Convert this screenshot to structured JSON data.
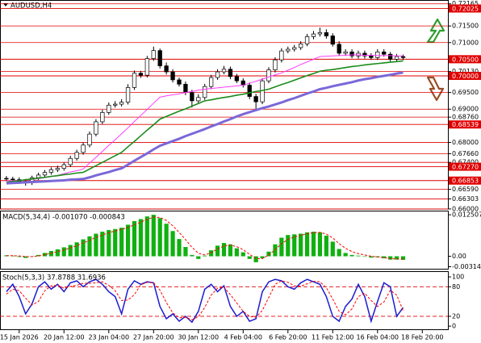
{
  "chart_data": [
    {
      "type": "candlestick",
      "title": "AUDUSD,H4",
      "x": [
        1,
        2,
        3,
        4,
        5,
        6,
        7,
        8,
        9,
        10,
        11,
        12,
        13,
        14,
        15,
        16,
        17,
        18,
        19,
        20,
        21,
        22,
        23,
        24,
        25,
        26,
        27,
        28,
        29,
        30,
        31,
        32,
        33,
        34,
        35,
        36,
        37,
        38,
        39,
        40,
        41,
        42,
        43,
        44,
        45,
        46,
        47,
        48,
        49,
        50,
        51,
        52,
        53,
        54,
        55,
        56,
        57,
        58,
        59,
        60,
        61,
        62,
        63
      ],
      "xlim": [
        0,
        70
      ],
      "xticks": [
        {
          "value": 3,
          "label": "15 Jan 2026"
        },
        {
          "value": 10,
          "label": "20 Jan 12:00"
        },
        {
          "value": 17,
          "label": "23 Jan 04:00"
        },
        {
          "value": 24,
          "label": "27 Jan 20:00"
        },
        {
          "value": 31,
          "label": "30 Jan 12:00"
        },
        {
          "value": 38,
          "label": "4 Feb 04:00"
        },
        {
          "value": 45,
          "label": "6 Feb 20:00"
        },
        {
          "value": 52,
          "label": "11 Feb 12:00"
        },
        {
          "value": 59,
          "label": "16 Feb 04:00"
        },
        {
          "value": 66,
          "label": "18 Feb 20:00"
        }
      ],
      "ylim": [
        0.65998,
        0.7228
      ],
      "yticks": [
        0.72165,
        {
          "value": 0.715,
          "label": "0.71500"
        },
        {
          "value": 0.71,
          "label": "0.71000"
        },
        {
          "value": 0.7013,
          "label": "0.70130"
        },
        {
          "value": 0.695,
          "label": "0.69500"
        },
        {
          "value": 0.69,
          "label": "0.69000"
        },
        {
          "value": 0.6876,
          "label": "0.68760"
        },
        {
          "value": 0.68,
          "label": "0.68000"
        },
        {
          "value": 0.6766,
          "label": "0.67660"
        },
        {
          "value": 0.674,
          "label": "0.67400"
        },
        {
          "value": 0.6659,
          "label": "0.66590"
        },
        0.66303,
        {
          "value": 0.66,
          "label": "0.66000"
        }
      ],
      "levels": [
        0.72025,
        {
          "value": 0.705,
          "label": "0.70500"
        },
        {
          "value": 0.7,
          "label": "0.70000"
        },
        0.68539,
        {
          "value": 0.6727,
          "label": "0.67270"
        },
        0.66853
      ],
      "level_color": "#e00000",
      "grid": true,
      "up_color": "#ffffff",
      "down_color": "#000000",
      "open": [
        0.6692,
        0.669,
        0.6688,
        0.6683,
        0.6679,
        0.6694,
        0.6702,
        0.671,
        0.6718,
        0.6722,
        0.6733,
        0.6752,
        0.677,
        0.6792,
        0.6825,
        0.6862,
        0.689,
        0.6912,
        0.6915,
        0.6921,
        0.6965,
        0.7008,
        0.7002,
        0.7052,
        0.7076,
        0.703,
        0.7012,
        0.6988,
        0.6975,
        0.695,
        0.6925,
        0.6935,
        0.6968,
        0.6995,
        0.7012,
        0.702,
        0.6998,
        0.6985,
        0.6972,
        0.6938,
        0.6922,
        0.6985,
        0.7018,
        0.7048,
        0.7075,
        0.708,
        0.7085,
        0.7096,
        0.7118,
        0.7126,
        0.713,
        0.712,
        0.7095,
        0.7068,
        0.7072,
        0.706,
        0.7068,
        0.706,
        0.7055,
        0.7072,
        0.7065,
        0.705,
        0.7058
      ],
      "high": [
        0.6699,
        0.6697,
        0.6695,
        0.669,
        0.67,
        0.6709,
        0.6717,
        0.6725,
        0.673,
        0.674,
        0.676,
        0.6778,
        0.68,
        0.6833,
        0.687,
        0.6898,
        0.692,
        0.6924,
        0.693,
        0.6975,
        0.7016,
        0.7015,
        0.706,
        0.7088,
        0.7082,
        0.704,
        0.702,
        0.6995,
        0.6983,
        0.6958,
        0.6945,
        0.6976,
        0.7003,
        0.702,
        0.703,
        0.7028,
        0.7006,
        0.6993,
        0.698,
        0.6946,
        0.6993,
        0.7026,
        0.7056,
        0.7083,
        0.7088,
        0.7093,
        0.7104,
        0.7126,
        0.7135,
        0.7145,
        0.714,
        0.7128,
        0.7104,
        0.708,
        0.708,
        0.7076,
        0.7076,
        0.7068,
        0.708,
        0.708,
        0.7072,
        0.7066,
        0.7064
      ],
      "low": [
        0.6684,
        0.6681,
        0.6676,
        0.667,
        0.6672,
        0.6687,
        0.6695,
        0.6703,
        0.6711,
        0.6715,
        0.6726,
        0.6745,
        0.6763,
        0.6785,
        0.6818,
        0.6855,
        0.6883,
        0.6905,
        0.6908,
        0.6914,
        0.6958,
        0.6994,
        0.6995,
        0.7045,
        0.7022,
        0.7004,
        0.698,
        0.6968,
        0.6942,
        0.6905,
        0.6918,
        0.6928,
        0.696,
        0.6988,
        0.7005,
        0.699,
        0.6978,
        0.6965,
        0.693,
        0.69,
        0.6915,
        0.6978,
        0.701,
        0.704,
        0.7068,
        0.7073,
        0.7078,
        0.7089,
        0.711,
        0.7118,
        0.7112,
        0.7088,
        0.706,
        0.706,
        0.7053,
        0.7052,
        0.7052,
        0.7048,
        0.7048,
        0.7058,
        0.7043,
        0.7044,
        0.7048
      ],
      "close": [
        0.669,
        0.6688,
        0.6683,
        0.6679,
        0.6694,
        0.6702,
        0.671,
        0.6718,
        0.6722,
        0.6733,
        0.6752,
        0.677,
        0.6792,
        0.6825,
        0.6862,
        0.689,
        0.6912,
        0.6915,
        0.6921,
        0.6965,
        0.7008,
        0.7002,
        0.7052,
        0.7076,
        0.703,
        0.7012,
        0.6988,
        0.6975,
        0.695,
        0.6925,
        0.6935,
        0.6968,
        0.6995,
        0.7012,
        0.702,
        0.6998,
        0.6985,
        0.6972,
        0.6938,
        0.6922,
        0.6985,
        0.7018,
        0.7048,
        0.7075,
        0.708,
        0.7085,
        0.7096,
        0.7118,
        0.7126,
        0.713,
        0.712,
        0.7095,
        0.7068,
        0.7072,
        0.706,
        0.7068,
        0.706,
        0.7055,
        0.7072,
        0.7065,
        0.705,
        0.7058,
        0.7055
      ],
      "overlays": [
        {
          "color": "#ff3cff",
          "width": 1,
          "values": [
            0.6684,
            0.6685,
            0.6686,
            0.6687,
            0.6689,
            0.6691,
            0.6694,
            0.6697,
            0.6701,
            0.6706,
            0.6711,
            0.6715,
            0.672,
            0.6738,
            0.6755,
            0.6773,
            0.6791,
            0.6808,
            0.6826,
            0.6844,
            0.6863,
            0.6881,
            0.6899,
            0.6918,
            0.6936,
            0.694,
            0.6943,
            0.6946,
            0.695,
            0.6953,
            0.6957,
            0.696,
            0.6962,
            0.6964,
            0.6966,
            0.6968,
            0.697,
            0.6972,
            0.6978,
            0.6984,
            0.699,
            0.6997,
            0.7003,
            0.7009,
            0.7017,
            0.7025,
            0.7034,
            0.7042,
            0.705,
            0.7058,
            0.7059,
            0.706,
            0.7061,
            0.7062,
            0.7063,
            0.7063,
            0.7062,
            0.7062,
            0.7061,
            0.7061,
            0.7061,
            0.706,
            0.706
          ]
        },
        {
          "color": "#1a8c1a",
          "width": 1.6,
          "values": [
            0.668,
            0.6683,
            0.6685,
            0.6688,
            0.669,
            0.6693,
            0.6695,
            0.6698,
            0.67,
            0.6703,
            0.6705,
            0.6708,
            0.671,
            0.672,
            0.673,
            0.674,
            0.675,
            0.676,
            0.677,
            0.6787,
            0.6803,
            0.682,
            0.6837,
            0.6853,
            0.687,
            0.6878,
            0.6886,
            0.6894,
            0.6901,
            0.6909,
            0.6917,
            0.6925,
            0.6928,
            0.6932,
            0.6935,
            0.6938,
            0.6942,
            0.6945,
            0.6949,
            0.6953,
            0.6956,
            0.696,
            0.6967,
            0.6974,
            0.698,
            0.6987,
            0.6994,
            0.7001,
            0.7007,
            0.7014,
            0.7017,
            0.7019,
            0.7022,
            0.7025,
            0.7028,
            0.703,
            0.7033,
            0.7035,
            0.7037,
            0.7039,
            0.7041,
            0.7043,
            0.7045
          ]
        },
        {
          "color": "#7b68d8",
          "width": 3,
          "values": [
            0.6677,
            0.6678,
            0.6679,
            0.668,
            0.6681,
            0.6682,
            0.6683,
            0.6684,
            0.6685,
            0.6686,
            0.6688,
            0.6689,
            0.669,
            0.6695,
            0.6701,
            0.6706,
            0.6711,
            0.6717,
            0.6722,
            0.6733,
            0.6745,
            0.6756,
            0.6767,
            0.6779,
            0.679,
            0.6797,
            0.6804,
            0.6811,
            0.6819,
            0.6826,
            0.6833,
            0.684,
            0.6848,
            0.6855,
            0.6863,
            0.687,
            0.6878,
            0.6885,
            0.6891,
            0.6897,
            0.6903,
            0.6908,
            0.6914,
            0.692,
            0.6927,
            0.6933,
            0.694,
            0.6947,
            0.6953,
            0.696,
            0.6964,
            0.6969,
            0.6973,
            0.6977,
            0.6981,
            0.6986,
            0.699,
            0.6993,
            0.6997,
            0.7,
            0.7003,
            0.7007,
            0.701
          ]
        }
      ]
    },
    {
      "type": "bar",
      "title": "MACD(5,34,4) -0.001070 -0.000843",
      "ylim": [
        -0.004,
        0.0135
      ],
      "yticks": [
        0.012507,
        {
          "value": 0,
          "label": "0.00"
        },
        -0.003141
      ],
      "series": [
        {
          "type": "bar",
          "color": "#10b010",
          "values": [
            0.0003,
            0.0002,
            -0.0002,
            -0.0005,
            -0.0001,
            0.0004,
            0.001,
            0.0016,
            0.0021,
            0.0027,
            0.0034,
            0.0042,
            0.0051,
            0.006,
            0.0068,
            0.0074,
            0.0079,
            0.0082,
            0.0086,
            0.0095,
            0.0106,
            0.0112,
            0.012,
            0.0125,
            0.0115,
            0.0098,
            0.0076,
            0.0052,
            0.0028,
            0.0004,
            -0.0008,
            0.0002,
            0.0018,
            0.0032,
            0.004,
            0.0036,
            0.0024,
            0.0012,
            -0.0008,
            -0.0018,
            -0.0006,
            0.0014,
            0.0036,
            0.0056,
            0.0064,
            0.0066,
            0.0068,
            0.0072,
            0.0074,
            0.0072,
            0.0062,
            0.0044,
            0.0022,
            0.001,
            0.0004,
            0.0002,
            0.0,
            -0.0004,
            -0.0003,
            -0.0006,
            -0.001,
            -0.001,
            -0.00107
          ]
        },
        {
          "type": "line",
          "color": "#ff0000",
          "dash": true,
          "values": [
            0.0002,
            0.0002,
            0.0001,
            -0.0001,
            -0.0001,
            0.0001,
            0.0005,
            0.0009,
            0.0014,
            0.0019,
            0.0025,
            0.0032,
            0.004,
            0.0048,
            0.0057,
            0.0064,
            0.0071,
            0.0076,
            0.0081,
            0.0087,
            0.0095,
            0.0103,
            0.0111,
            0.0118,
            0.0117,
            0.0108,
            0.0092,
            0.0072,
            0.005,
            0.0027,
            0.0009,
            0.0004,
            0.0011,
            0.0022,
            0.0031,
            0.0034,
            0.0029,
            0.002,
            0.0006,
            -0.0007,
            -0.0007,
            0.0004,
            0.002,
            0.0038,
            0.0051,
            0.0058,
            0.0063,
            0.0068,
            0.0071,
            0.0072,
            0.0067,
            0.0055,
            0.0038,
            0.0024,
            0.0014,
            0.0008,
            0.0004,
            0.0,
            -0.0002,
            -0.0004,
            -0.0007,
            -0.0008,
            -0.000843
          ]
        }
      ]
    },
    {
      "type": "line",
      "title": "Stoch(5,3,3) 37.8788 31.6936",
      "ylim": [
        -8,
        110
      ],
      "yticks": [
        100,
        80,
        20,
        0
      ],
      "levels": [
        80,
        20
      ],
      "level_color": "#e00000",
      "series": [
        {
          "color": "#1c1cd0",
          "width": 1.5,
          "values": [
            70,
            85,
            60,
            25,
            45,
            80,
            90,
            75,
            85,
            70,
            88,
            92,
            80,
            90,
            95,
            85,
            70,
            60,
            25,
            75,
            92,
            85,
            90,
            88,
            40,
            15,
            25,
            10,
            20,
            8,
            30,
            75,
            85,
            70,
            82,
            40,
            20,
            30,
            10,
            15,
            70,
            90,
            95,
            92,
            80,
            75,
            88,
            95,
            90,
            85,
            60,
            20,
            10,
            40,
            55,
            85,
            60,
            10,
            50,
            88,
            80,
            20,
            37.8788
          ]
        },
        {
          "color": "#ff0000",
          "width": 1,
          "dash": true,
          "values": [
            65,
            75,
            72,
            57,
            43,
            50,
            72,
            82,
            83,
            77,
            81,
            83,
            87,
            87,
            88,
            90,
            83,
            72,
            52,
            53,
            64,
            84,
            89,
            88,
            73,
            48,
            27,
            17,
            18,
            13,
            19,
            38,
            63,
            77,
            79,
            64,
            47,
            30,
            20,
            18,
            32,
            58,
            85,
            92,
            89,
            82,
            81,
            86,
            91,
            90,
            78,
            55,
            30,
            23,
            35,
            60,
            67,
            52,
            40,
            49,
            73,
            63,
            31.6936
          ]
        }
      ]
    }
  ]
}
